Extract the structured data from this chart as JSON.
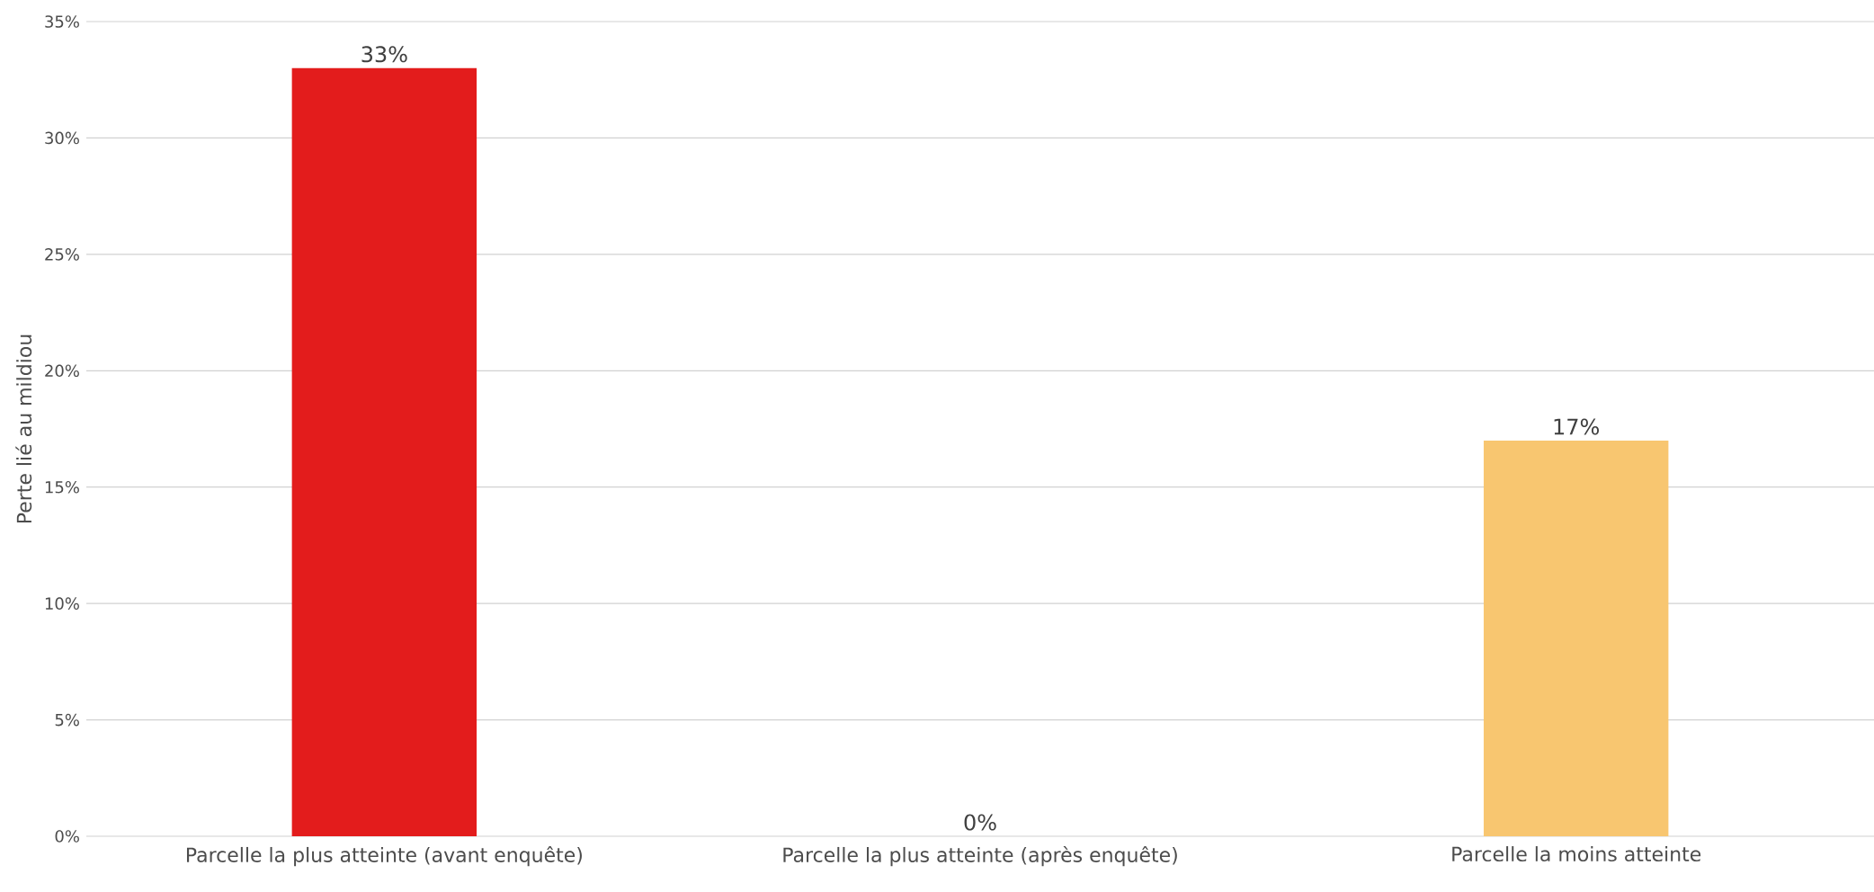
{
  "chart_data": {
    "type": "bar",
    "ylabel": "Perte lié au mildiou",
    "categories": [
      "Parcelle la plus atteinte (avant enquête)",
      "Parcelle la plus atteinte (après enquête)",
      "Parcelle la moins atteinte"
    ],
    "values": [
      33,
      0,
      17
    ],
    "colors": [
      "#e31c1c",
      "#f39c34",
      "#f8c670"
    ],
    "value_labels": [
      "33%",
      "0%",
      "17%"
    ],
    "ylim": [
      0,
      35
    ],
    "yticks": [
      {
        "value": 0,
        "label": "0%"
      },
      {
        "value": 5,
        "label": "5%"
      },
      {
        "value": 10,
        "label": "10%"
      },
      {
        "value": 15,
        "label": "15%"
      },
      {
        "value": 20,
        "label": "20%"
      },
      {
        "value": 25,
        "label": "25%"
      },
      {
        "value": 30,
        "label": "30%"
      },
      {
        "value": 35,
        "label": "35%"
      }
    ],
    "grid": "y"
  }
}
